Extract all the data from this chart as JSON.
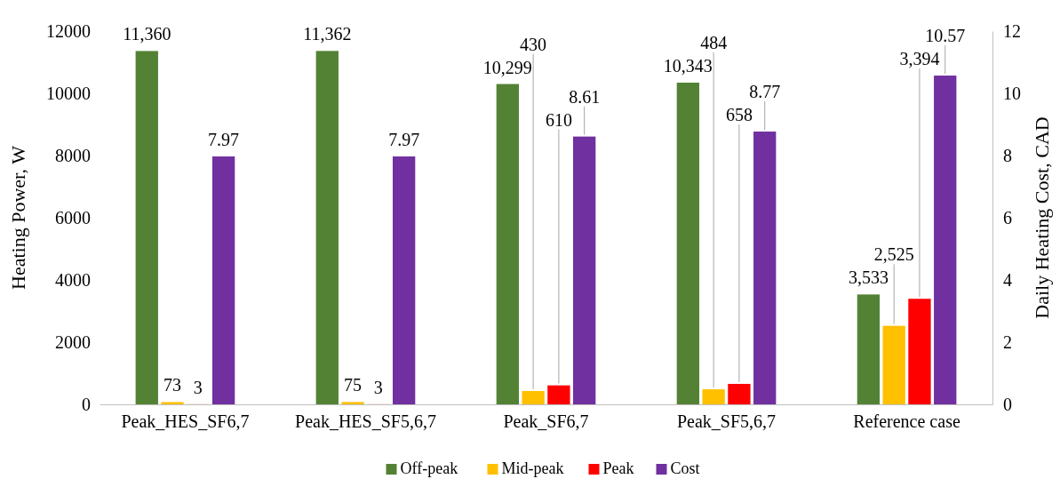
{
  "chart_data": {
    "type": "bar",
    "ylabel": "Heating Power, W",
    "y2label": "Daily Heating Cost, CAD",
    "categories": [
      "Peak_HES_SF6,7",
      "Peak_HES_SF5,6,7",
      "Peak_SF6,7",
      "Peak_SF5,6,7",
      "Reference case"
    ],
    "series": [
      {
        "name": "Off-peak",
        "color": "#548235",
        "values": [
          11360,
          11362,
          10299,
          10343,
          3533
        ],
        "value_labels": [
          "11,360",
          "11,362",
          "10,299",
          "10,343",
          "3,533"
        ]
      },
      {
        "name": "Mid-peak",
        "color": "#ffc000",
        "values": [
          73,
          75,
          430,
          484,
          2525
        ],
        "value_labels": [
          "73",
          "75",
          "430",
          "484",
          "2,525"
        ]
      },
      {
        "name": "Peak",
        "color": "#ff0000",
        "values": [
          3,
          3,
          610,
          658,
          3394
        ],
        "value_labels": [
          "3",
          "3",
          "610",
          "658",
          "3,394"
        ]
      },
      {
        "name": "Cost",
        "color": "#7030a0",
        "axis": "y2",
        "values": [
          7.97,
          7.97,
          8.61,
          8.77,
          10.57
        ],
        "value_labels": [
          "7.97",
          "7.97",
          "8.61",
          "8.77",
          "10.57"
        ]
      }
    ],
    "ylim": [
      0,
      12000
    ],
    "yticks": [
      0,
      2000,
      4000,
      6000,
      8000,
      10000,
      12000
    ],
    "y2lim": [
      0,
      12
    ],
    "y2ticks": [
      0,
      2,
      4,
      6,
      8,
      10,
      12
    ],
    "legend": "bottom",
    "grid": false
  }
}
